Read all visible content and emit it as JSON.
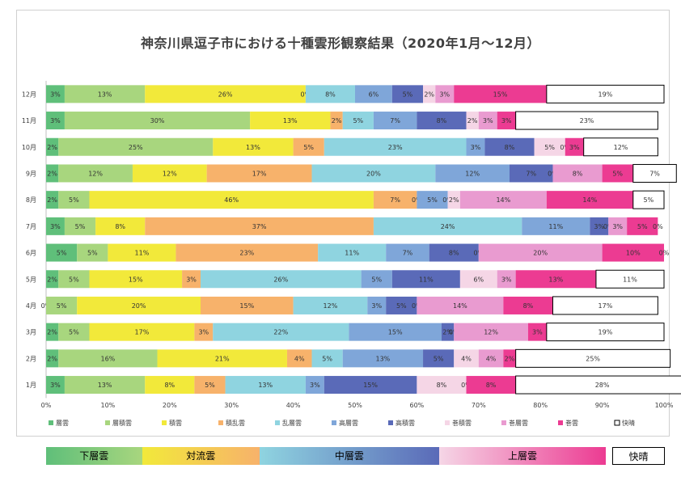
{
  "title": "神奈川県逗子市における十種雲形観察結果（2020年1月～12月）",
  "chart_data": {
    "type": "bar",
    "orientation": "horizontal",
    "stacked": true,
    "percent": true,
    "categories": [
      "12月",
      "11月",
      "10月",
      "9月",
      "8月",
      "7月",
      "6月",
      "5月",
      "4月",
      "3月",
      "2月",
      "1月"
    ],
    "xlim": [
      0,
      100
    ],
    "x_ticks": [
      "0%",
      "10%",
      "20%",
      "30%",
      "40%",
      "50%",
      "60%",
      "70%",
      "80%",
      "90%",
      "100%"
    ],
    "legend_position": "bottom",
    "series": [
      {
        "name": "層雲",
        "color": "#5fbf7a",
        "values": [
          3,
          3,
          2,
          2,
          2,
          3,
          5,
          2,
          0,
          2,
          2,
          3
        ]
      },
      {
        "name": "層積雲",
        "color": "#a8d67e",
        "values": [
          13,
          30,
          25,
          12,
          5,
          5,
          5,
          5,
          5,
          5,
          16,
          13
        ]
      },
      {
        "name": "積雲",
        "color": "#f2e93a",
        "values": [
          26,
          13,
          13,
          12,
          46,
          8,
          11,
          15,
          20,
          17,
          21,
          8
        ]
      },
      {
        "name": "積乱雲",
        "color": "#f7b26b",
        "values": [
          0,
          2,
          5,
          17,
          7,
          37,
          23,
          3,
          15,
          3,
          4,
          5
        ]
      },
      {
        "name": "乱層雲",
        "color": "#8fd4e0",
        "values": [
          8,
          5,
          23,
          20,
          0,
          24,
          11,
          26,
          12,
          22,
          5,
          13
        ]
      },
      {
        "name": "高層雲",
        "color": "#7fa6d9",
        "values": [
          6,
          7,
          3,
          12,
          5,
          11,
          7,
          5,
          3,
          15,
          13,
          3
        ]
      },
      {
        "name": "高積雲",
        "color": "#5a6ab8",
        "values": [
          5,
          8,
          8,
          7,
          0,
          3,
          8,
          11,
          5,
          2,
          5,
          15
        ]
      },
      {
        "name": "巻積雲",
        "color": "#f5d6e6",
        "values": [
          2,
          2,
          5,
          0,
          2,
          0,
          0,
          6,
          0,
          0,
          4,
          8
        ]
      },
      {
        "name": "巻層雲",
        "color": "#e99bd0",
        "values": [
          3,
          3,
          0,
          8,
          14,
          3,
          20,
          3,
          14,
          12,
          4,
          0
        ]
      },
      {
        "name": "巻雲",
        "color": "#ec3b92",
        "values": [
          15,
          3,
          3,
          5,
          14,
          5,
          10,
          13,
          8,
          3,
          2,
          8
        ]
      },
      {
        "name": "快晴",
        "color": "#ffffff",
        "values": [
          19,
          23,
          12,
          7,
          5,
          0,
          0,
          11,
          17,
          19,
          25,
          28
        ]
      }
    ],
    "labels": [
      [
        "3%",
        "13%",
        "26%",
        "0%",
        "8%",
        "6%",
        "5%",
        "2%",
        "3%",
        "15%",
        "19%"
      ],
      [
        "3%",
        "30%",
        "13%",
        "2%",
        "5%",
        "7%",
        "8%",
        "2%",
        "3%",
        "3%",
        "23%"
      ],
      [
        "2%",
        "25%",
        "13%",
        "5%",
        "23%",
        "3%",
        "8%",
        "5%",
        "0%",
        "3%",
        "12%"
      ],
      [
        "2%",
        "12%",
        "12%",
        "17%",
        "20%",
        "12%",
        "7%",
        "0%",
        "8%",
        "5%",
        "7%"
      ],
      [
        "2%",
        "5%",
        "46%",
        "7%",
        "0%",
        "5%",
        "0%",
        "2%",
        "14%",
        "14%",
        "5%"
      ],
      [
        "3%",
        "5%",
        "8%",
        "37%",
        "24%",
        "11%",
        "3%",
        "0%",
        "3%",
        "5%",
        "0%"
      ],
      [
        "5%",
        "5%",
        "11%",
        "23%",
        "11%",
        "7%",
        "8%",
        "0%",
        "20%",
        "10%",
        "0%"
      ],
      [
        "2%",
        "5%",
        "15%",
        "3%",
        "26%",
        "5%",
        "11%",
        "6%",
        "3%",
        "13%",
        "11%"
      ],
      [
        "0%",
        "5%",
        "20%",
        "15%",
        "12%",
        "3%",
        "5%",
        "0%",
        "14%",
        "8%",
        "17%"
      ],
      [
        "2%",
        "5%",
        "17%",
        "3%",
        "22%",
        "15%",
        "2%",
        "0%",
        "12%",
        "3%",
        "19%"
      ],
      [
        "2%",
        "16%",
        "21%",
        "4%",
        "5%",
        "13%",
        "5%",
        "4%",
        "4%",
        "2%",
        "25%"
      ],
      [
        "3%",
        "13%",
        "8%",
        "5%",
        "13%",
        "3%",
        "15%",
        "8%",
        "0%",
        "8%",
        "28%"
      ]
    ]
  },
  "groups": [
    {
      "label": "下層雲",
      "from": 0,
      "to": 15.5,
      "gradient": [
        "#5fbf7a",
        "#a8d67e"
      ]
    },
    {
      "label": "対流雲",
      "from": 15.5,
      "to": 34.5,
      "gradient": [
        "#f2e93a",
        "#f7b26b"
      ]
    },
    {
      "label": "中層雲",
      "from": 34.5,
      "to": 63.5,
      "gradient": [
        "#8fd4e0",
        "#5a6ab8"
      ]
    },
    {
      "label": "上層雲",
      "from": 63.5,
      "to": 90.5,
      "gradient": [
        "#f5d6e6",
        "#ec3b92"
      ]
    },
    {
      "label": "快晴",
      "from": 91.5,
      "to": 100,
      "gradient": [
        "#ffffff",
        "#ffffff"
      ]
    }
  ]
}
